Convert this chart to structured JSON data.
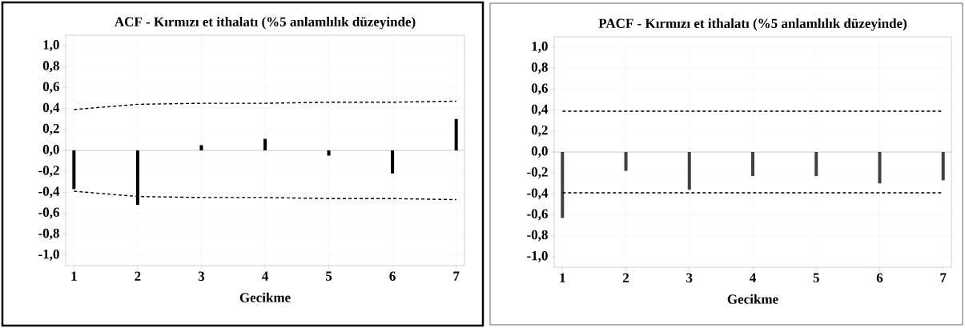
{
  "chart_data": [
    {
      "type": "bar",
      "title": "ACF - Kırmızı et ithalatı (%5 anlamlılık düzeyinde)",
      "xlabel": "Gecikme",
      "x": [
        1,
        2,
        3,
        4,
        5,
        6,
        7
      ],
      "series": [
        {
          "type": "bar",
          "color": "#000000",
          "values": [
            -0.37,
            -0.52,
            0.05,
            0.11,
            -0.05,
            -0.22,
            0.3
          ]
        },
        {
          "type": "line",
          "color": "#000000",
          "line_style": "dashed",
          "marker": "none",
          "values": [
            0.39,
            0.44,
            0.45,
            0.45,
            0.46,
            0.46,
            0.47
          ]
        },
        {
          "type": "line",
          "color": "#000000",
          "line_style": "dashed",
          "marker": "none",
          "values": [
            -0.39,
            -0.44,
            -0.45,
            -0.45,
            -0.46,
            -0.46,
            -0.47
          ]
        }
      ],
      "xlim": [
        0.87,
        7.13
      ],
      "xticks": [
        1,
        2,
        3,
        4,
        5,
        6,
        7
      ],
      "ylim": [
        -1.1,
        1.1
      ],
      "yticks": [
        {
          "value": -1.0,
          "label": "-1,0"
        },
        {
          "value": -0.8,
          "label": "-0,8"
        },
        {
          "value": -0.6,
          "label": "-0,6"
        },
        {
          "value": -0.4,
          "label": "-0,4"
        },
        {
          "value": -0.2,
          "label": "-0,2"
        },
        {
          "value": 0.0,
          "label": "0,0"
        },
        {
          "value": 0.2,
          "label": "0,2"
        },
        {
          "value": 0.4,
          "label": "0,4"
        },
        {
          "value": 0.6,
          "label": "0,6"
        },
        {
          "value": 0.8,
          "label": "0,8"
        },
        {
          "value": 1.0,
          "label": "1,0"
        }
      ],
      "grid": true
    },
    {
      "type": "bar",
      "title": "PACF - Kırmızı et ithalatı (%5 anlamlılık düzeyinde)",
      "xlabel": "Gecikme",
      "x": [
        1,
        2,
        3,
        4,
        5,
        6,
        7
      ],
      "series": [
        {
          "type": "bar",
          "color": "#404040",
          "values": [
            -0.63,
            -0.18,
            -0.36,
            -0.23,
            -0.23,
            -0.3,
            -0.27
          ]
        },
        {
          "type": "line",
          "color": "#000000",
          "line_style": "dashed",
          "marker": "none",
          "values": [
            0.39,
            0.39,
            0.39,
            0.39,
            0.39,
            0.39,
            0.39
          ]
        },
        {
          "type": "line",
          "color": "#000000",
          "line_style": "dashed",
          "marker": "none",
          "values": [
            -0.39,
            -0.39,
            -0.39,
            -0.39,
            -0.39,
            -0.39,
            -0.39
          ]
        }
      ],
      "xlim": [
        0.87,
        7.13
      ],
      "xticks": [
        1,
        2,
        3,
        4,
        5,
        6,
        7
      ],
      "ylim": [
        -1.1,
        1.1
      ],
      "yticks": [
        {
          "value": -1.0,
          "label": "-1,0"
        },
        {
          "value": -0.8,
          "label": "-0,8"
        },
        {
          "value": -0.6,
          "label": "-0,6"
        },
        {
          "value": -0.4,
          "label": "-0,4"
        },
        {
          "value": -0.2,
          "label": "-0,2"
        },
        {
          "value": 0.0,
          "label": "0,0"
        },
        {
          "value": 0.2,
          "label": "0,2"
        },
        {
          "value": 0.4,
          "label": "0,4"
        },
        {
          "value": 0.6,
          "label": "0,6"
        },
        {
          "value": 0.8,
          "label": "0,8"
        },
        {
          "value": 1.0,
          "label": "1,0"
        }
      ],
      "grid": true
    }
  ]
}
